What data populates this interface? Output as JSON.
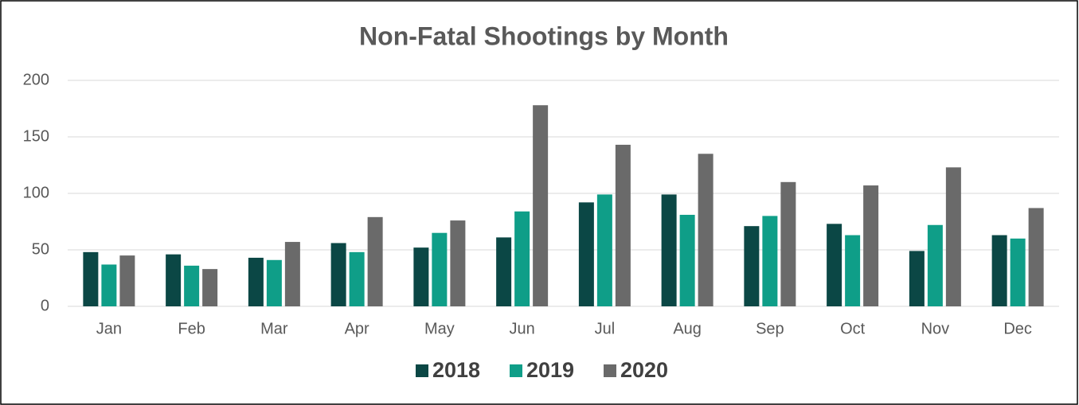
{
  "chart_data": {
    "type": "bar",
    "title": "Non-Fatal Shootings by Month",
    "categories": [
      "Jan",
      "Feb",
      "Mar",
      "Apr",
      "May",
      "Jun",
      "Jul",
      "Aug",
      "Sep",
      "Oct",
      "Nov",
      "Dec"
    ],
    "series": [
      {
        "name": "2018",
        "color": "#0b4745",
        "values": [
          48,
          46,
          43,
          56,
          52,
          61,
          92,
          99,
          71,
          73,
          49,
          63
        ]
      },
      {
        "name": "2019",
        "color": "#0f9e88",
        "values": [
          37,
          36,
          41,
          48,
          65,
          84,
          99,
          81,
          80,
          63,
          72,
          60
        ]
      },
      {
        "name": "2020",
        "color": "#6a6a6a",
        "values": [
          45,
          33,
          57,
          79,
          76,
          178,
          143,
          135,
          110,
          107,
          123,
          87
        ]
      }
    ],
    "ylim": [
      0,
      200
    ],
    "yticks": [
      0,
      50,
      100,
      150,
      200
    ],
    "grid": true,
    "legend": "bottom"
  }
}
